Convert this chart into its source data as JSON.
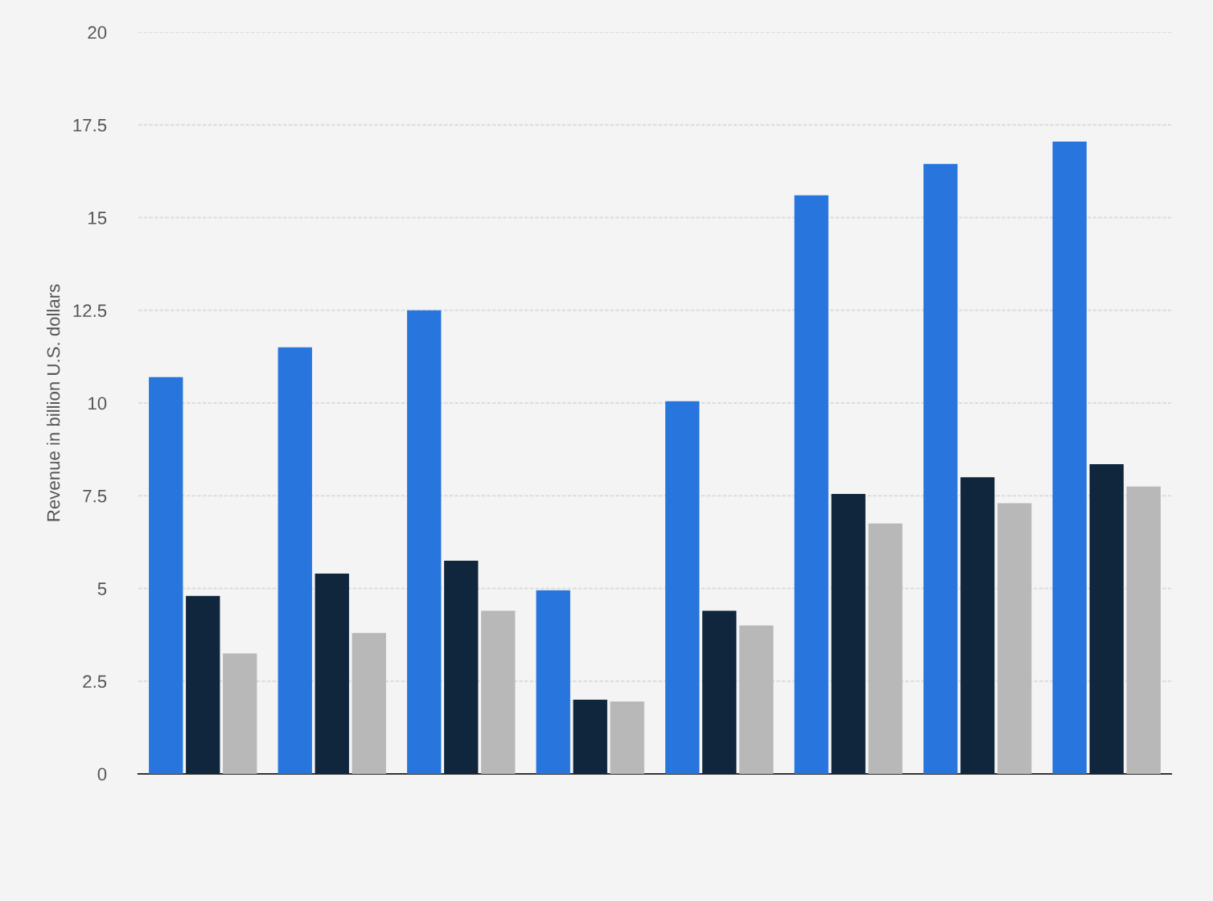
{
  "chart_data": {
    "type": "bar",
    "ylabel": "Revenue in billion U.S. dollars",
    "categories": [
      null,
      null,
      null,
      null,
      null,
      null,
      null,
      null
    ],
    "series": [
      {
        "color": "#2876dd",
        "values": [
          10.7,
          11.5,
          12.5,
          4.95,
          10.05,
          15.6,
          16.45,
          17.05
        ]
      },
      {
        "color": "#10263d",
        "values": [
          4.8,
          5.4,
          5.75,
          2.0,
          4.4,
          7.55,
          8.0,
          8.35
        ]
      },
      {
        "color": "#b8b8b8",
        "values": [
          3.25,
          3.8,
          4.4,
          1.95,
          4.0,
          6.75,
          7.3,
          7.75
        ]
      }
    ],
    "ylim": [
      0,
      20
    ],
    "yticks": [
      0,
      2.5,
      5,
      7.5,
      10,
      12.5,
      15,
      17.5,
      20
    ],
    "grid": "y",
    "tick_labels": "y"
  }
}
